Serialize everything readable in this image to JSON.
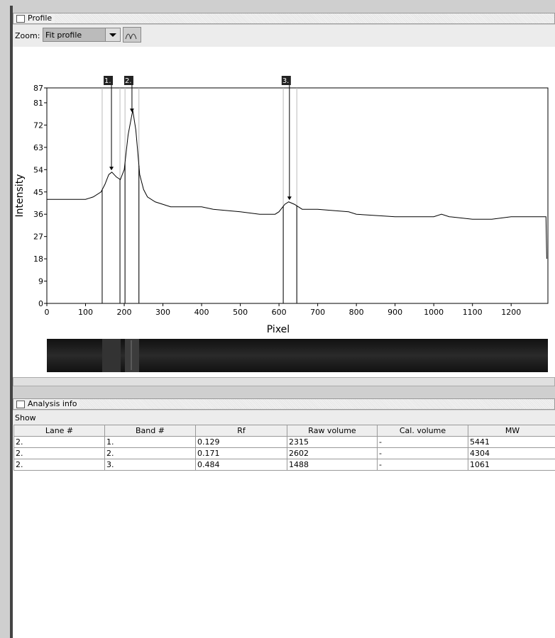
{
  "profile_panel": {
    "title": "Profile",
    "zoom_label": "Zoom:",
    "zoom_value": "Fit profile"
  },
  "chart_data": {
    "type": "line",
    "x_label": "Pixel",
    "y_label": "Intensity",
    "xlim": [
      0,
      1295
    ],
    "ylim": [
      0,
      87
    ],
    "xticks": [
      0,
      100,
      200,
      300,
      400,
      500,
      600,
      700,
      800,
      900,
      1000,
      1100,
      1200
    ],
    "yticks": [
      0,
      9,
      18,
      27,
      36,
      45,
      54,
      63,
      72,
      81,
      87
    ],
    "x": [
      0,
      50,
      100,
      120,
      140,
      150,
      160,
      168,
      180,
      190,
      200,
      210,
      222,
      230,
      240,
      250,
      260,
      280,
      300,
      320,
      400,
      430,
      500,
      550,
      590,
      600,
      615,
      625,
      640,
      660,
      700,
      780,
      800,
      900,
      1000,
      1020,
      1040,
      1100,
      1150,
      1200,
      1290,
      1292
    ],
    "series": [
      {
        "color": "#000000",
        "values": [
          42,
          42,
          42,
          43,
          45,
          48,
          52,
          53,
          51,
          50,
          54,
          68,
          78,
          70,
          52,
          46,
          43,
          41,
          40,
          39,
          39,
          38,
          37,
          36,
          36,
          37,
          40,
          41,
          40,
          38,
          38,
          37,
          36,
          35,
          35,
          36,
          35,
          34,
          34,
          35,
          35,
          18
        ]
      }
    ],
    "bands": [
      {
        "label": "1.",
        "left": 143,
        "right": 189,
        "peak": 167
      },
      {
        "label": "2.",
        "left": 202,
        "right": 238,
        "peak": 220
      },
      {
        "label": "3.",
        "left": 611,
        "right": 646,
        "peak": 627
      }
    ]
  },
  "analysis_panel": {
    "title": "Analysis info",
    "menu": "Show"
  },
  "table": {
    "headers": [
      "Lane #",
      "Band #",
      "Rf",
      "Raw volume",
      "Cal. volume",
      "MW"
    ],
    "rows": [
      [
        "2.",
        "1.",
        "0.129",
        "2315",
        "-",
        "5441"
      ],
      [
        "2.",
        "2.",
        "0.171",
        "2602",
        "-",
        "4304"
      ],
      [
        "2.",
        "3.",
        "0.484",
        "1488",
        "-",
        "1061"
      ]
    ]
  }
}
